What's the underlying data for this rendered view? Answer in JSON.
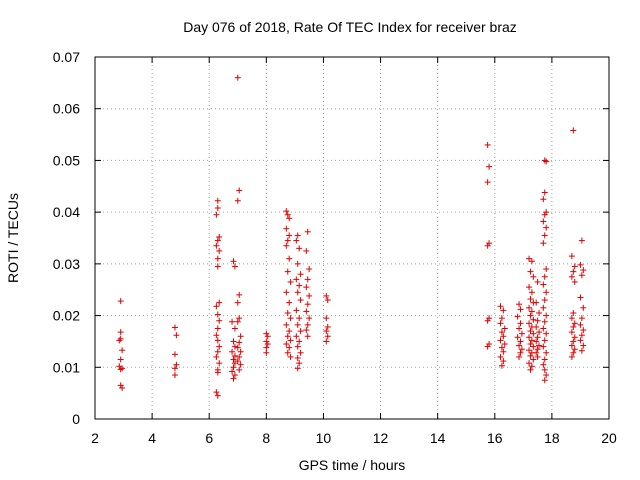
{
  "chart_data": {
    "type": "scatter",
    "title": "Day 076 of 2018, Rate Of TEC Index for receiver braz",
    "xlabel": "GPS time / hours",
    "ylabel": "ROTI / TECUs",
    "xlim": [
      2,
      20
    ],
    "ylim": [
      0,
      0.07
    ],
    "xticks": [
      2,
      4,
      6,
      8,
      10,
      12,
      14,
      16,
      18,
      20
    ],
    "yticks": [
      0,
      0.01,
      0.02,
      0.03,
      0.04,
      0.05,
      0.06,
      0.07
    ],
    "xtick_labels": [
      "2",
      "4",
      "6",
      "8",
      "10",
      "12",
      "14",
      "16",
      "18",
      "20"
    ],
    "ytick_labels": [
      "0",
      "0.01",
      "0.02",
      "0.03",
      "0.04",
      "0.05",
      "0.06",
      "0.07"
    ],
    "grid": true,
    "marker": "+",
    "marker_color": "#e00000",
    "series": [
      {
        "points": [
          [
            2.9,
            0.0228
          ],
          [
            2.9,
            0.0168
          ],
          [
            2.9,
            0.0155
          ],
          [
            2.85,
            0.0152
          ],
          [
            2.95,
            0.0133
          ],
          [
            2.9,
            0.0115
          ],
          [
            2.85,
            0.0102
          ],
          [
            2.95,
            0.0098
          ],
          [
            2.9,
            0.0096
          ],
          [
            2.9,
            0.0065
          ],
          [
            2.95,
            0.006
          ],
          [
            4.8,
            0.0177
          ],
          [
            4.85,
            0.0162
          ],
          [
            4.8,
            0.0125
          ],
          [
            4.85,
            0.0105
          ],
          [
            4.8,
            0.0098
          ],
          [
            4.8,
            0.0085
          ],
          [
            6.3,
            0.0422
          ],
          [
            6.3,
            0.0408
          ],
          [
            6.25,
            0.0395
          ],
          [
            6.35,
            0.0352
          ],
          [
            6.3,
            0.0345
          ],
          [
            6.25,
            0.0335
          ],
          [
            6.35,
            0.0325
          ],
          [
            6.3,
            0.031
          ],
          [
            6.3,
            0.0295
          ],
          [
            6.35,
            0.0225
          ],
          [
            6.25,
            0.0218
          ],
          [
            6.3,
            0.0202
          ],
          [
            6.35,
            0.019
          ],
          [
            6.3,
            0.0175
          ],
          [
            6.25,
            0.0162
          ],
          [
            6.3,
            0.0152
          ],
          [
            6.35,
            0.014
          ],
          [
            6.3,
            0.013
          ],
          [
            6.25,
            0.012
          ],
          [
            6.35,
            0.0108
          ],
          [
            6.3,
            0.0095
          ],
          [
            6.3,
            0.009
          ],
          [
            6.25,
            0.0052
          ],
          [
            6.3,
            0.0045
          ],
          [
            6.85,
            0.0305
          ],
          [
            6.9,
            0.0295
          ],
          [
            6.8,
            0.0188
          ],
          [
            6.9,
            0.0175
          ],
          [
            6.85,
            0.015
          ],
          [
            6.9,
            0.014
          ],
          [
            6.8,
            0.013
          ],
          [
            6.9,
            0.0122
          ],
          [
            6.85,
            0.0115
          ],
          [
            6.9,
            0.0108
          ],
          [
            6.85,
            0.01
          ],
          [
            6.8,
            0.0092
          ],
          [
            6.9,
            0.0085
          ],
          [
            6.85,
            0.0078
          ],
          [
            7.0,
            0.066
          ],
          [
            7.05,
            0.0442
          ],
          [
            7.0,
            0.0422
          ],
          [
            7.05,
            0.024
          ],
          [
            7.0,
            0.0225
          ],
          [
            7.05,
            0.0195
          ],
          [
            7.0,
            0.0188
          ],
          [
            7.1,
            0.016
          ],
          [
            7.05,
            0.0148
          ],
          [
            7.0,
            0.0138
          ],
          [
            7.1,
            0.013
          ],
          [
            7.05,
            0.012
          ],
          [
            7.0,
            0.0112
          ],
          [
            7.1,
            0.0105
          ],
          [
            7.05,
            0.0095
          ],
          [
            8.0,
            0.0165
          ],
          [
            8.05,
            0.016
          ],
          [
            8.0,
            0.015
          ],
          [
            8.05,
            0.0145
          ],
          [
            8.0,
            0.0138
          ],
          [
            8.0,
            0.0128
          ],
          [
            8.7,
            0.0402
          ],
          [
            8.75,
            0.0395
          ],
          [
            8.8,
            0.0388
          ],
          [
            8.7,
            0.0368
          ],
          [
            8.8,
            0.0355
          ],
          [
            8.75,
            0.0345
          ],
          [
            8.7,
            0.0335
          ],
          [
            8.8,
            0.031
          ],
          [
            8.75,
            0.0285
          ],
          [
            8.85,
            0.0265
          ],
          [
            8.7,
            0.0245
          ],
          [
            8.8,
            0.0225
          ],
          [
            8.75,
            0.0205
          ],
          [
            8.85,
            0.0195
          ],
          [
            8.7,
            0.0182
          ],
          [
            8.8,
            0.017
          ],
          [
            8.75,
            0.016
          ],
          [
            8.85,
            0.0152
          ],
          [
            8.7,
            0.0145
          ],
          [
            8.8,
            0.0138
          ],
          [
            8.75,
            0.0128
          ],
          [
            8.85,
            0.012
          ],
          [
            9.1,
            0.0355
          ],
          [
            9.05,
            0.0345
          ],
          [
            9.15,
            0.033
          ],
          [
            9.1,
            0.03
          ],
          [
            9.2,
            0.028
          ],
          [
            9.05,
            0.027
          ],
          [
            9.15,
            0.0258
          ],
          [
            9.1,
            0.0245
          ],
          [
            9.2,
            0.023
          ],
          [
            9.05,
            0.021
          ],
          [
            9.15,
            0.0195
          ],
          [
            9.1,
            0.0182
          ],
          [
            9.2,
            0.017
          ],
          [
            9.05,
            0.016
          ],
          [
            9.15,
            0.015
          ],
          [
            9.1,
            0.014
          ],
          [
            9.2,
            0.0128
          ],
          [
            9.1,
            0.0118
          ],
          [
            9.15,
            0.0108
          ],
          [
            9.1,
            0.0098
          ],
          [
            9.45,
            0.0362
          ],
          [
            9.4,
            0.0325
          ],
          [
            9.5,
            0.029
          ],
          [
            9.45,
            0.027
          ],
          [
            9.4,
            0.0255
          ],
          [
            9.5,
            0.0238
          ],
          [
            9.45,
            0.0222
          ],
          [
            9.4,
            0.0208
          ],
          [
            9.5,
            0.0195
          ],
          [
            9.45,
            0.0182
          ],
          [
            9.4,
            0.0172
          ],
          [
            9.45,
            0.016
          ],
          [
            10.1,
            0.0238
          ],
          [
            10.15,
            0.023
          ],
          [
            10.1,
            0.0195
          ],
          [
            10.15,
            0.0178
          ],
          [
            10.1,
            0.017
          ],
          [
            10.15,
            0.016
          ],
          [
            10.1,
            0.015
          ],
          [
            15.75,
            0.053
          ],
          [
            15.8,
            0.0488
          ],
          [
            15.75,
            0.0458
          ],
          [
            15.8,
            0.034
          ],
          [
            15.75,
            0.0335
          ],
          [
            15.8,
            0.0195
          ],
          [
            15.75,
            0.019
          ],
          [
            15.8,
            0.0145
          ],
          [
            15.75,
            0.014
          ],
          [
            16.2,
            0.0218
          ],
          [
            16.3,
            0.021
          ],
          [
            16.25,
            0.0195
          ],
          [
            16.2,
            0.0185
          ],
          [
            16.35,
            0.0175
          ],
          [
            16.25,
            0.0168
          ],
          [
            16.3,
            0.016
          ],
          [
            16.2,
            0.0152
          ],
          [
            16.35,
            0.0145
          ],
          [
            16.25,
            0.0138
          ],
          [
            16.3,
            0.013
          ],
          [
            16.2,
            0.012
          ],
          [
            16.3,
            0.0112
          ],
          [
            16.25,
            0.0103
          ],
          [
            16.85,
            0.0222
          ],
          [
            16.9,
            0.0212
          ],
          [
            16.8,
            0.0198
          ],
          [
            16.9,
            0.0185
          ],
          [
            16.85,
            0.0175
          ],
          [
            16.95,
            0.0165
          ],
          [
            16.8,
            0.0158
          ],
          [
            16.9,
            0.015
          ],
          [
            16.85,
            0.0142
          ],
          [
            16.95,
            0.0135
          ],
          [
            16.9,
            0.0128
          ],
          [
            16.85,
            0.012
          ],
          [
            17.2,
            0.031
          ],
          [
            17.3,
            0.0305
          ],
          [
            17.25,
            0.0285
          ],
          [
            17.35,
            0.0275
          ],
          [
            17.2,
            0.0255
          ],
          [
            17.3,
            0.0245
          ],
          [
            17.25,
            0.0232
          ],
          [
            17.35,
            0.0225
          ],
          [
            17.2,
            0.0215
          ],
          [
            17.3,
            0.0208
          ],
          [
            17.25,
            0.02
          ],
          [
            17.35,
            0.0192
          ],
          [
            17.2,
            0.0185
          ],
          [
            17.3,
            0.0178
          ],
          [
            17.25,
            0.017
          ],
          [
            17.35,
            0.0165
          ],
          [
            17.2,
            0.0158
          ],
          [
            17.3,
            0.0152
          ],
          [
            17.25,
            0.0145
          ],
          [
            17.35,
            0.014
          ],
          [
            17.2,
            0.0133
          ],
          [
            17.3,
            0.0128
          ],
          [
            17.25,
            0.0122
          ],
          [
            17.35,
            0.0115
          ],
          [
            17.2,
            0.0108
          ],
          [
            17.3,
            0.0102
          ],
          [
            17.25,
            0.0095
          ],
          [
            17.5,
            0.0265
          ],
          [
            17.45,
            0.0225
          ],
          [
            17.55,
            0.0205
          ],
          [
            17.5,
            0.019
          ],
          [
            17.45,
            0.0178
          ],
          [
            17.55,
            0.0168
          ],
          [
            17.5,
            0.0158
          ],
          [
            17.45,
            0.015
          ],
          [
            17.55,
            0.0142
          ],
          [
            17.5,
            0.0135
          ],
          [
            17.45,
            0.0128
          ],
          [
            17.5,
            0.012
          ],
          [
            17.75,
            0.05
          ],
          [
            17.8,
            0.0498
          ],
          [
            17.75,
            0.0438
          ],
          [
            17.7,
            0.0425
          ],
          [
            17.8,
            0.04
          ],
          [
            17.75,
            0.0395
          ],
          [
            17.7,
            0.0382
          ],
          [
            17.8,
            0.037
          ],
          [
            17.75,
            0.0355
          ],
          [
            17.7,
            0.034
          ],
          [
            17.8,
            0.029
          ],
          [
            17.75,
            0.0275
          ],
          [
            17.7,
            0.026
          ],
          [
            17.8,
            0.0245
          ],
          [
            17.75,
            0.023
          ],
          [
            17.7,
            0.0215
          ],
          [
            17.8,
            0.02
          ],
          [
            17.75,
            0.0188
          ],
          [
            17.7,
            0.0175
          ],
          [
            17.8,
            0.0165
          ],
          [
            17.75,
            0.0152
          ],
          [
            17.7,
            0.014
          ],
          [
            17.8,
            0.0128
          ],
          [
            17.75,
            0.0115
          ],
          [
            17.7,
            0.0105
          ],
          [
            17.75,
            0.0095
          ],
          [
            17.8,
            0.0085
          ],
          [
            17.75,
            0.0075
          ],
          [
            18.75,
            0.0558
          ],
          [
            18.7,
            0.0315
          ],
          [
            18.8,
            0.0295
          ],
          [
            18.75,
            0.0285
          ],
          [
            18.7,
            0.0275
          ],
          [
            18.8,
            0.0265
          ],
          [
            18.75,
            0.0205
          ],
          [
            18.7,
            0.0195
          ],
          [
            18.8,
            0.0185
          ],
          [
            18.75,
            0.0178
          ],
          [
            18.7,
            0.0168
          ],
          [
            18.8,
            0.0158
          ],
          [
            18.75,
            0.015
          ],
          [
            18.7,
            0.0142
          ],
          [
            18.8,
            0.0135
          ],
          [
            18.75,
            0.0128
          ],
          [
            18.7,
            0.012
          ],
          [
            19.05,
            0.0345
          ],
          [
            19.0,
            0.0298
          ],
          [
            19.1,
            0.0288
          ],
          [
            19.05,
            0.0278
          ],
          [
            19.0,
            0.0235
          ],
          [
            19.1,
            0.0215
          ],
          [
            19.05,
            0.0195
          ],
          [
            19.0,
            0.0182
          ],
          [
            19.1,
            0.0172
          ],
          [
            19.05,
            0.0162
          ],
          [
            19.0,
            0.0152
          ],
          [
            19.1,
            0.0142
          ],
          [
            19.05,
            0.0132
          ]
        ]
      }
    ]
  }
}
